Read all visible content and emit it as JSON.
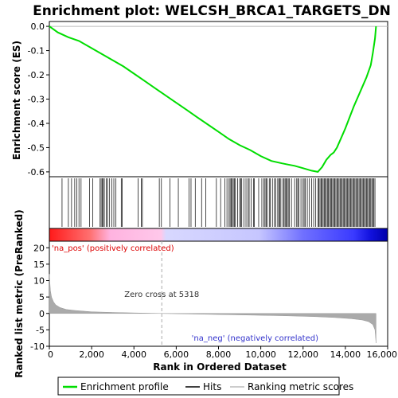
{
  "chart_data": {
    "type": "line",
    "title": "Enrichment plot: WELCSH_BRCA1_TARGETS_DN",
    "es_panel": {
      "ylabel": "Enrichment score (ES)",
      "ylim": [
        -0.62,
        0.02
      ],
      "yticks": [
        "0.0",
        "-0.1",
        "-0.2",
        "-0.3",
        "-0.4",
        "-0.5",
        "-0.6"
      ],
      "series_name": "Enrichment profile",
      "x": [
        0,
        400,
        900,
        1400,
        2000,
        2500,
        3000,
        3500,
        4000,
        4500,
        5000,
        5500,
        6000,
        6500,
        7000,
        7500,
        8000,
        8500,
        9000,
        9500,
        10000,
        10500,
        11000,
        11300,
        11600,
        12000,
        12400,
        12700,
        12900,
        13100,
        13300,
        13450,
        13600,
        13800,
        14000,
        14200,
        14400,
        14600,
        14800,
        15000,
        15200,
        15300,
        15400,
        15450
      ],
      "y": [
        0.0,
        -0.025,
        -0.045,
        -0.06,
        -0.09,
        -0.115,
        -0.14,
        -0.165,
        -0.195,
        -0.225,
        -0.255,
        -0.285,
        -0.315,
        -0.345,
        -0.375,
        -0.405,
        -0.435,
        -0.465,
        -0.49,
        -0.51,
        -0.535,
        -0.555,
        -0.565,
        -0.57,
        -0.575,
        -0.585,
        -0.595,
        -0.6,
        -0.58,
        -0.55,
        -0.53,
        -0.52,
        -0.5,
        -0.46,
        -0.42,
        -0.375,
        -0.33,
        -0.29,
        -0.25,
        -0.21,
        -0.16,
        -0.11,
        -0.05,
        0.0
      ]
    },
    "hits_panel": {
      "series_name": "Hits",
      "positions": [
        600,
        900,
        1050,
        1200,
        1300,
        1400,
        1500,
        1900,
        2050,
        2400,
        2450,
        2500,
        2550,
        2600,
        2700,
        2750,
        2850,
        2950,
        3050,
        3150,
        3400,
        3450,
        4200,
        4350,
        4400,
        5200,
        5300,
        5700,
        6100,
        6600,
        6700,
        6900,
        7200,
        7400,
        7900,
        8100,
        8300,
        8400,
        8500,
        8550,
        8600,
        8650,
        8700,
        8750,
        8800,
        8900,
        9000,
        9050,
        9100,
        9200,
        9300,
        9400,
        9450,
        9550,
        9650,
        9700,
        9900,
        10050,
        10150,
        10200,
        10250,
        10300,
        10400,
        10450,
        10550,
        10650,
        10700,
        10800,
        10850,
        10900,
        10950,
        11050,
        11100,
        11150,
        11200,
        11250,
        11300,
        11350,
        11450,
        11600,
        11700,
        11750,
        11800,
        11900,
        12000,
        12050,
        12100,
        12200,
        12300,
        12400,
        12500,
        12600,
        12700,
        12750,
        12800,
        12850,
        12900,
        12950,
        13000,
        13050,
        13100,
        13150,
        13200,
        13250,
        13300,
        13350,
        13400,
        13450,
        13500,
        13550,
        13600,
        13650,
        13700,
        13750,
        13800,
        13850,
        13900,
        13950,
        14000,
        14050,
        14100,
        14150,
        14200,
        14250,
        14300,
        14350,
        14400,
        14450,
        14500,
        14550,
        14600,
        14650,
        14700,
        14750,
        14800,
        14850,
        14900,
        14950,
        15000,
        15050,
        15100,
        15150,
        15200,
        15250,
        15300,
        15350,
        15400
      ]
    },
    "rank_panel": {
      "ylabel": "Ranked list metric (PreRanked)",
      "ylim": [
        -10,
        22
      ],
      "yticks": [
        "20",
        "15",
        "10",
        "5",
        "0",
        "-5",
        "-10"
      ],
      "series_name": "Ranking metric scores",
      "x": [
        0,
        50,
        100,
        200,
        300,
        500,
        800,
        1200,
        2000,
        3000,
        4000,
        5318,
        7000,
        9000,
        11000,
        12500,
        13500,
        14300,
        14800,
        15100,
        15300,
        15400,
        15450
      ],
      "y": [
        12,
        7,
        5,
        3.5,
        2.6,
        1.8,
        1.2,
        0.9,
        0.5,
        0.3,
        0.15,
        0.0,
        -0.2,
        -0.45,
        -0.7,
        -0.95,
        -1.25,
        -1.6,
        -2.0,
        -2.5,
        -3.4,
        -5.0,
        -9.0
      ],
      "zero_cross_label": "Zero cross at 5318",
      "zero_cross_x": 5318,
      "pos_label": "'na_pos' (positively correlated)",
      "neg_label": "'na_neg' (negatively correlated)"
    },
    "xlabel": "Rank in Ordered Dataset",
    "xlim": [
      0,
      16000
    ],
    "xticks": [
      0,
      2000,
      4000,
      6000,
      8000,
      10000,
      12000,
      14000,
      16000
    ],
    "xtick_labels": [
      "0",
      "2,000",
      "4,000",
      "6,000",
      "8,000",
      "10,000",
      "12,000",
      "14,000",
      "16,000"
    ],
    "max_rank": 15450,
    "colors": {
      "enrichment": "#00dd00",
      "hits": "#000000",
      "metric": "#aaaaaa",
      "pos_text": "#dd0000",
      "neg_text": "#3333cc",
      "zero_line": "#aaaaaa"
    },
    "legend": {
      "placement": "bottom",
      "items": [
        "Enrichment profile",
        "Hits",
        "Ranking metric scores"
      ]
    }
  }
}
